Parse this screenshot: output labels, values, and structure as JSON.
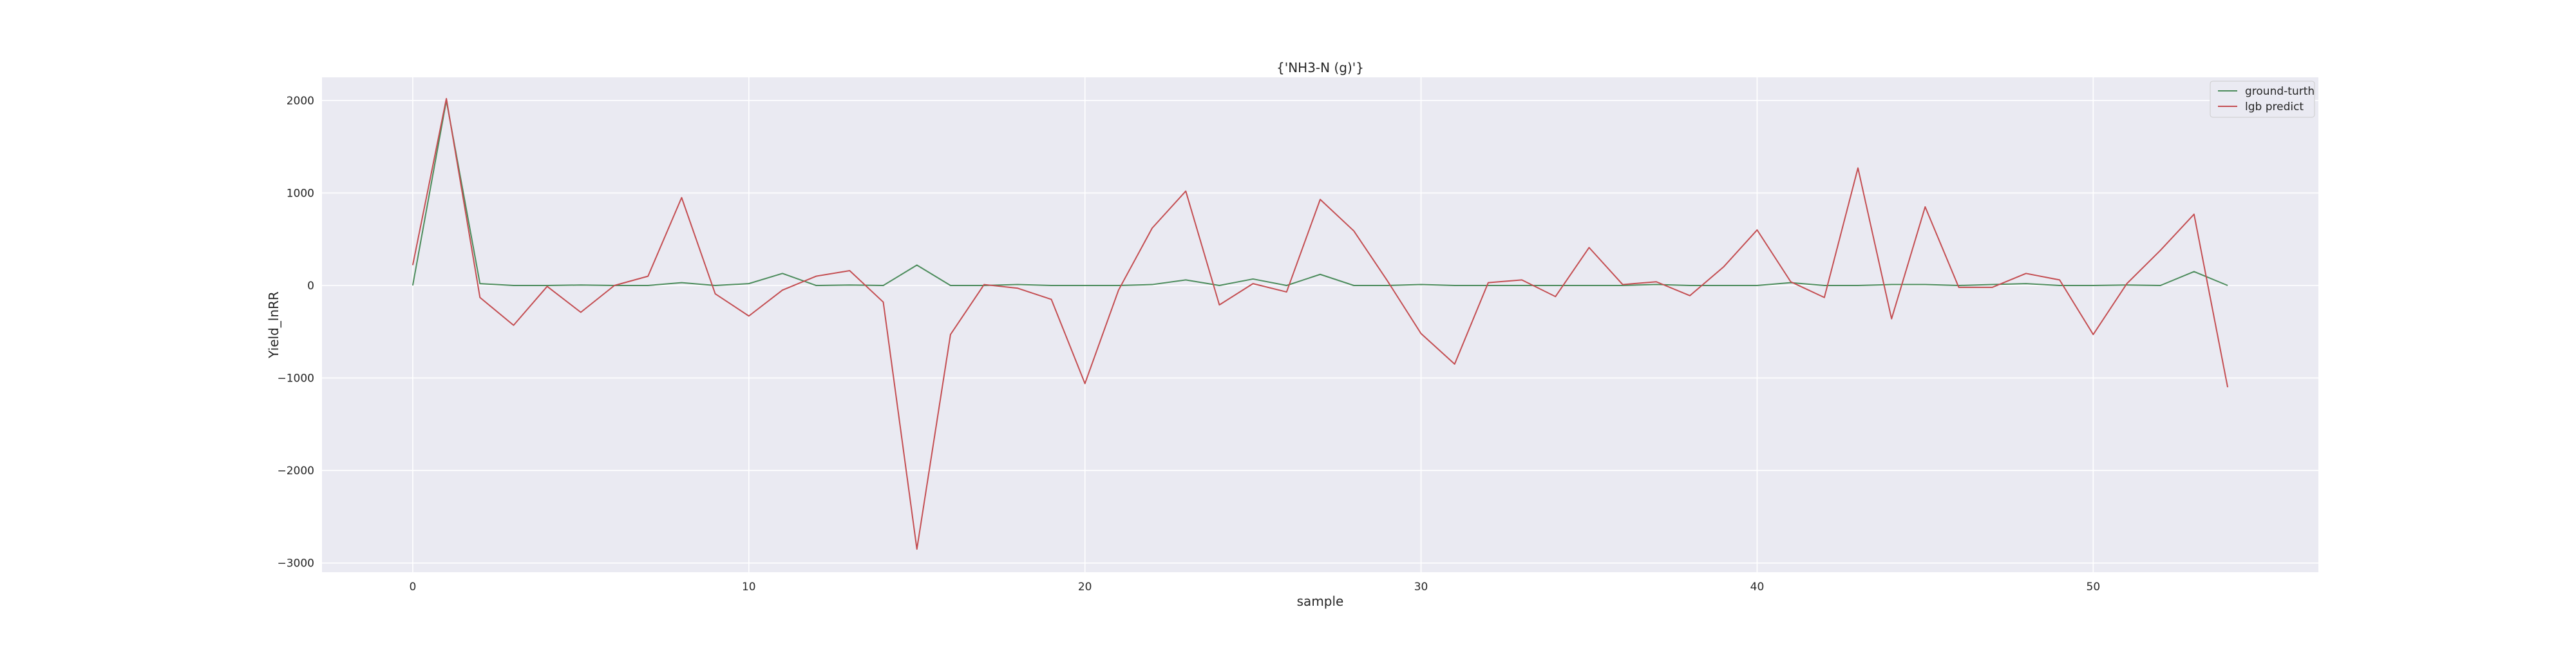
{
  "chart_data": {
    "type": "line",
    "title": "{'NH3-N (g)'}",
    "xlabel": "sample",
    "ylabel": "Yield_lnRR",
    "xlim": [
      -2.7,
      56.7
    ],
    "ylim": [
      -3100,
      2250
    ],
    "x_ticks": [
      0,
      10,
      20,
      30,
      40,
      50
    ],
    "y_ticks": [
      -3000,
      -2000,
      -1000,
      0,
      1000,
      2000
    ],
    "y_tick_labels": [
      "−3000",
      "−2000",
      "−1000",
      "0",
      "1000",
      "2000"
    ],
    "grid": true,
    "legend_position": "upper right",
    "x": [
      0,
      1,
      2,
      3,
      4,
      5,
      6,
      7,
      8,
      9,
      10,
      11,
      12,
      13,
      14,
      15,
      16,
      17,
      18,
      19,
      20,
      21,
      22,
      23,
      24,
      25,
      26,
      27,
      28,
      29,
      30,
      31,
      32,
      33,
      34,
      35,
      36,
      37,
      38,
      39,
      40,
      41,
      42,
      43,
      44,
      45,
      46,
      47,
      48,
      49,
      50,
      51,
      52,
      53,
      54
    ],
    "series": [
      {
        "name": "ground-turth",
        "color": "#4c8c5c",
        "values": [
          0,
          2000,
          20,
          0,
          0,
          5,
          0,
          0,
          30,
          0,
          20,
          130,
          0,
          5,
          0,
          220,
          0,
          0,
          10,
          0,
          0,
          0,
          10,
          60,
          0,
          70,
          0,
          120,
          0,
          0,
          10,
          0,
          0,
          0,
          0,
          0,
          0,
          10,
          0,
          0,
          0,
          30,
          0,
          0,
          10,
          10,
          0,
          10,
          20,
          0,
          0,
          5,
          0,
          150,
          0
        ]
      },
      {
        "name": "lgb predict",
        "color": "#c44e52",
        "values": [
          220,
          2020,
          -130,
          -430,
          -10,
          -290,
          0,
          100,
          950,
          -90,
          -330,
          -50,
          100,
          160,
          -180,
          -2850,
          -530,
          10,
          -30,
          -150,
          -1060,
          -50,
          620,
          1020,
          -210,
          20,
          -70,
          930,
          590,
          50,
          -520,
          -850,
          30,
          60,
          -120,
          410,
          10,
          40,
          -110,
          200,
          600,
          40,
          -130,
          1270,
          -360,
          850,
          -20,
          -20,
          130,
          60,
          -530,
          20,
          380,
          770,
          -1100
        ]
      }
    ]
  }
}
